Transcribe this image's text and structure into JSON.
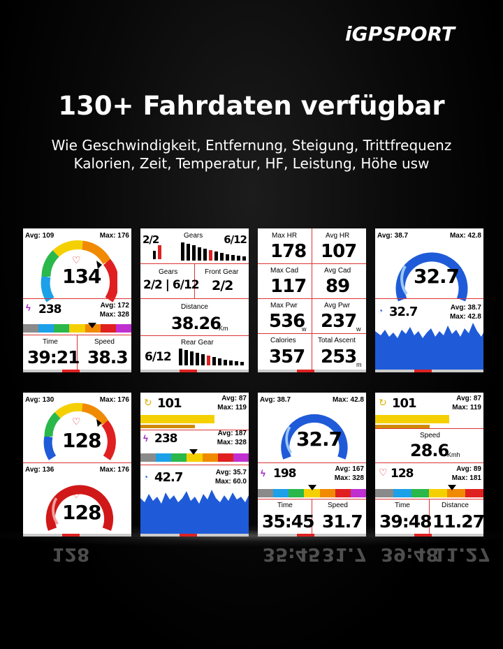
{
  "brand": "iGPSPORT",
  "headline": "130+ Fahrdaten verfügbar",
  "subline1": "Wie Geschwindigkeit, Entfernung, Steigung, Trittfrequenz",
  "subline2": "Kalorien, Zeit, Temperatur, HF, Leistung, Höhe usw",
  "s1": {
    "avg": "Avg: 109",
    "max": "Max: 176",
    "hr": "134",
    "pwr": "238",
    "pavg": "Avg: 172",
    "pmax": "Max: 328",
    "time_lbl": "Time",
    "time": "39:21",
    "speed_lbl": "Speed",
    "speed": "38.3",
    "unit": "k m h"
  },
  "s2": {
    "gears": "2/2",
    "gears_title": "Gears",
    "rear": "6/12",
    "g_lbl": "Gears",
    "g_val": "2/2 | 6/12",
    "fg_lbl": "Front Gear",
    "fg_val": "2/2",
    "dist_lbl": "Distance",
    "dist": "38.26",
    "dist_unit": "Km",
    "rg_lbl": "Rear Gear",
    "rg_val": "6/12"
  },
  "s3": {
    "cells": [
      {
        "label": "Max HR",
        "value": "178",
        "unit": "b p m"
      },
      {
        "label": "Avg HR",
        "value": "107",
        "unit": "b p m"
      },
      {
        "label": "Max Cad",
        "value": "117",
        "unit": "r p m"
      },
      {
        "label": "Avg Cad",
        "value": "89",
        "unit": "r p m"
      },
      {
        "label": "Max Pwr",
        "value": "536",
        "unit": "w"
      },
      {
        "label": "Avg Pwr",
        "value": "237",
        "unit": "w"
      },
      {
        "label": "Calories",
        "value": "357",
        "unit": "k c a l"
      },
      {
        "label": "Total Ascent",
        "value": "253",
        "unit": "m"
      }
    ]
  },
  "s4": {
    "avg": "Avg: 38.7",
    "max": "Max: 42.8",
    "speed": "32.7",
    "speed2": "32.7",
    "avg2": "Avg: 38.7",
    "max2": "Max: 42.8"
  },
  "s5": {
    "avg": "Avg: 130",
    "max": "Max: 176",
    "hr": "128",
    "avg2": "Avg: 136",
    "max2": "Max: 176",
    "hr2": "128"
  },
  "s6": {
    "cad": "101",
    "cavg": "Avg: 87",
    "cmax": "Max: 119",
    "pwr": "238",
    "pavg": "Avg: 187",
    "pmax": "Max: 328",
    "spd": "42.7",
    "savg": "Avg: 35.7",
    "smax": "Max: 60.0"
  },
  "s7": {
    "avg": "Avg: 38.7",
    "max": "Max: 42.8",
    "speed": "32.7",
    "pwr": "198",
    "pavg": "Avg: 167",
    "pmax": "Max: 328",
    "time_lbl": "Time",
    "time": "35:45",
    "speed_lbl": "Speed",
    "speed2": "31.7",
    "unit": "k m h"
  },
  "s8": {
    "cad": "101",
    "cavg": "Avg: 87",
    "cmax": "Max: 119",
    "spd_lbl": "Speed",
    "spd": "28.6",
    "spd_unit": "Kmh",
    "hr": "128",
    "havg": "Avg: 89",
    "hmax": "Max: 181",
    "time_lbl": "Time",
    "time": "39:48",
    "dist_lbl": "Distance",
    "dist": "11.27",
    "dist_unit": "k m"
  },
  "reflections": [
    "128",
    "35:45",
    "31.7",
    "39:48",
    "11.27"
  ],
  "colors": {
    "accent": "#d32020",
    "blue": "#1f5bd8",
    "yellow": "#f5d000",
    "orange": "#f08a00",
    "green": "#3cc23c"
  }
}
